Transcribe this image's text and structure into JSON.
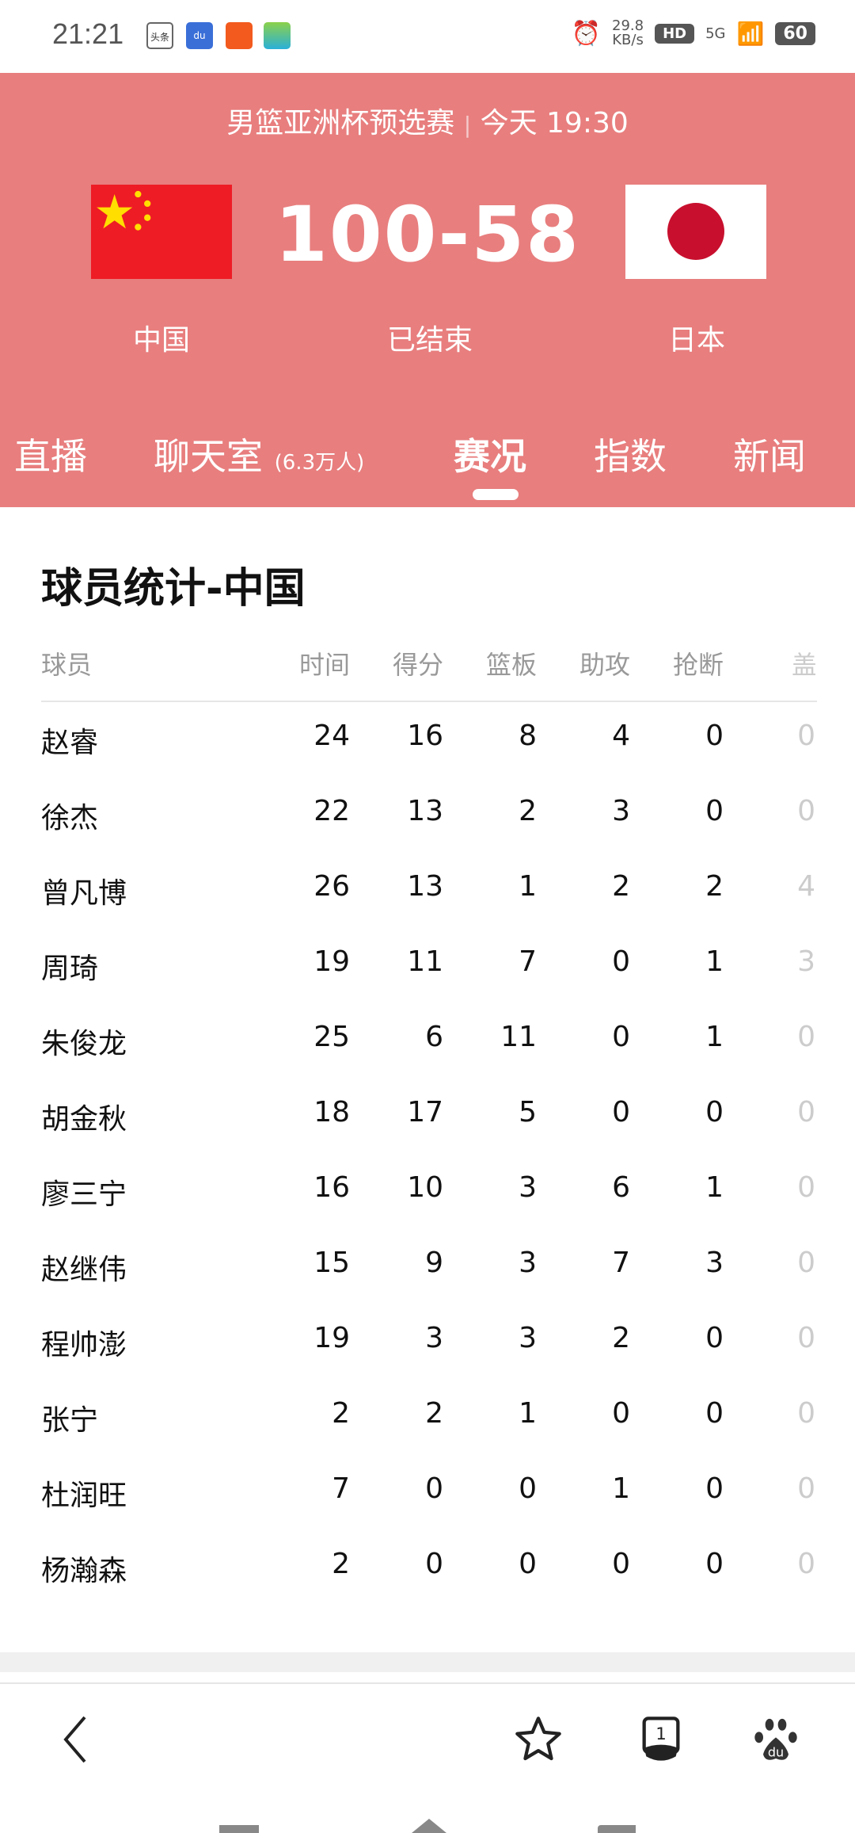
{
  "status_bar": {
    "time": "21:21",
    "app_icons": [
      "头条",
      "du",
      "toutiao-news",
      "ai"
    ],
    "net_speed": "29.8",
    "net_unit": "KB/s",
    "hd": "HD",
    "network": "5G",
    "battery": "60"
  },
  "match": {
    "title": "男篮亚洲杯预选赛",
    "separator": "|",
    "time": "今天 19:30",
    "score": "100-58",
    "status": "已结束",
    "home": "中国",
    "away": "日本",
    "colors": {
      "header": "#E87E7E",
      "china_flag": "#EE1C25",
      "japan_sun": "#C8102E"
    }
  },
  "tabs": [
    {
      "label": "直播"
    },
    {
      "label": "聊天室",
      "badge": "(6.3万人)"
    },
    {
      "label": "赛况",
      "active": true
    },
    {
      "label": "指数"
    },
    {
      "label": "新闻"
    }
  ],
  "stats": {
    "title": "球员统计-中国",
    "columns": [
      "球员",
      "时间",
      "得分",
      "篮板",
      "助攻",
      "抢断",
      "盖帽"
    ],
    "rows": [
      [
        "赵睿",
        "24",
        "16",
        "8",
        "4",
        "0",
        "0"
      ],
      [
        "徐杰",
        "22",
        "13",
        "2",
        "3",
        "0",
        "0"
      ],
      [
        "曾凡博",
        "26",
        "13",
        "1",
        "2",
        "2",
        "4"
      ],
      [
        "周琦",
        "19",
        "11",
        "7",
        "0",
        "1",
        "3"
      ],
      [
        "朱俊龙",
        "25",
        "6",
        "11",
        "0",
        "1",
        "0"
      ],
      [
        "胡金秋",
        "18",
        "17",
        "5",
        "0",
        "0",
        "0"
      ],
      [
        "廖三宁",
        "16",
        "10",
        "3",
        "6",
        "1",
        "0"
      ],
      [
        "赵继伟",
        "15",
        "9",
        "3",
        "7",
        "3",
        "0"
      ],
      [
        "程帅澎",
        "19",
        "3",
        "3",
        "2",
        "0",
        "0"
      ],
      [
        "张宁",
        "2",
        "2",
        "1",
        "0",
        "0",
        "0"
      ],
      [
        "杜润旺",
        "7",
        "0",
        "0",
        "1",
        "0",
        "0"
      ],
      [
        "杨瀚森",
        "2",
        "0",
        "0",
        "0",
        "0",
        "0"
      ]
    ]
  },
  "bottom_bar": {
    "icons": [
      "back-icon",
      "star-icon",
      "tabs-incognito-icon",
      "baidu-paw-icon"
    ],
    "tab_count": "1",
    "baidu_text": "du"
  }
}
